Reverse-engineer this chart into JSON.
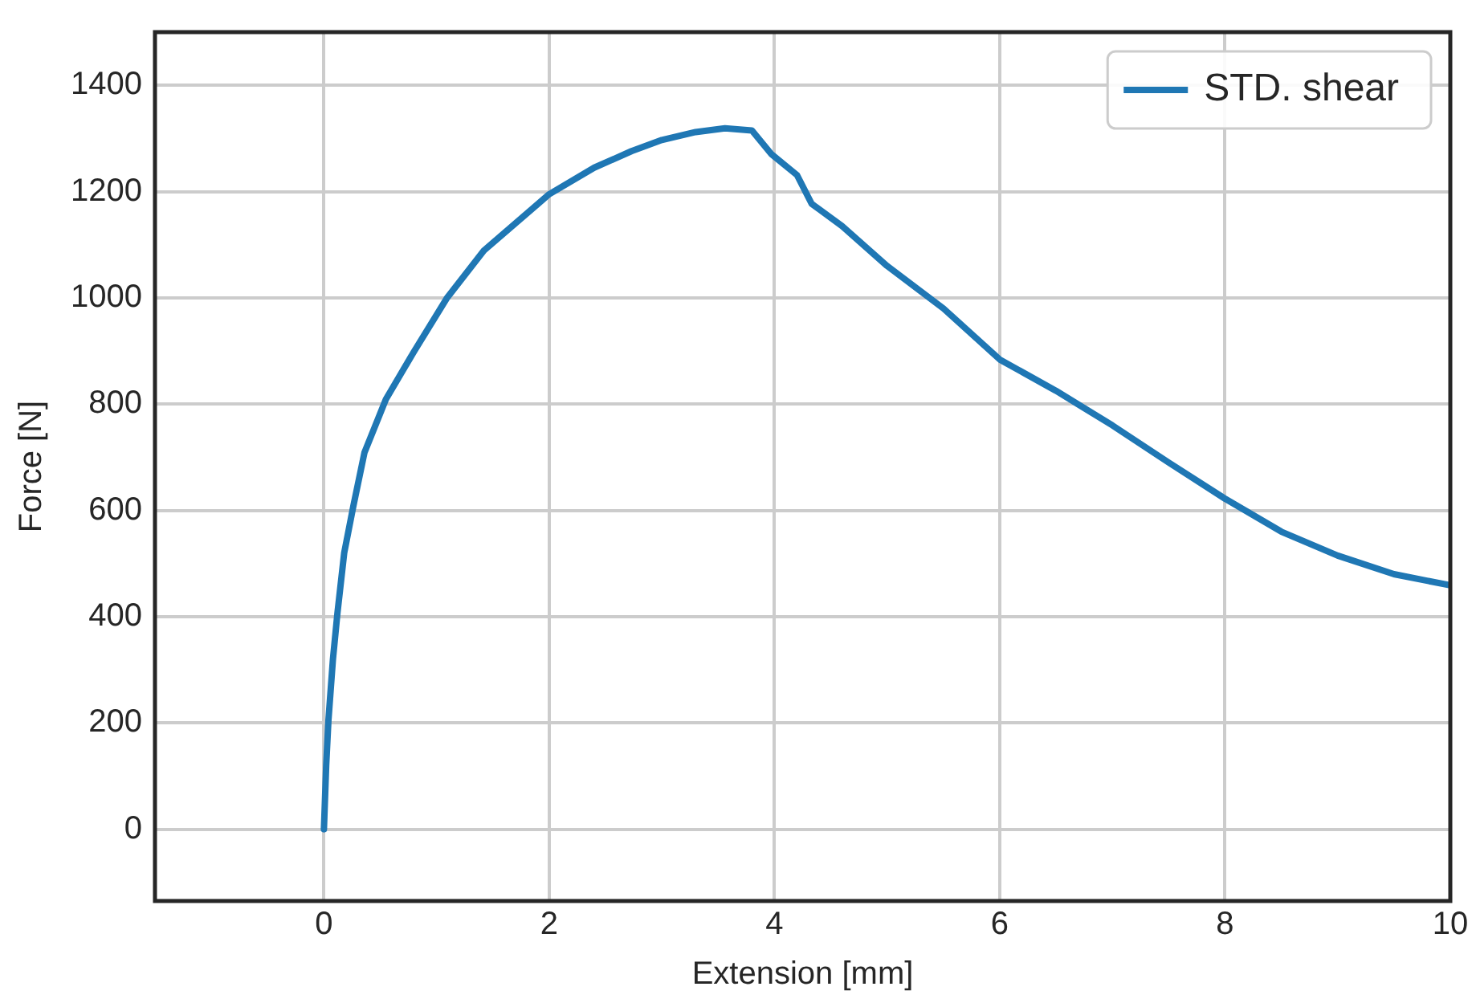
{
  "chart_data": {
    "type": "line",
    "xlabel": "Extension [mm]",
    "ylabel": "Force [N]",
    "xlim": [
      -1.5,
      10
    ],
    "xticks": [
      0,
      2,
      4,
      6,
      8,
      10
    ],
    "ylim": [
      -135,
      1500
    ],
    "yticks": [
      0,
      200,
      400,
      600,
      800,
      1000,
      1200,
      1400
    ],
    "grid": true,
    "legend": "top right",
    "marker": "none",
    "line_style": "solid",
    "series": [
      {
        "name": "STD. shear",
        "color": "#1f77b4",
        "x": [
          0,
          0.02,
          0.04,
          0.08,
          0.12,
          0.18,
          0.26,
          0.36,
          0.55,
          0.8,
          1.09,
          1.42,
          2.0,
          2.4,
          2.73,
          3.0,
          3.3,
          3.56,
          3.8,
          3.97,
          4.2,
          4.33,
          4.6,
          5.0,
          5.5,
          6.0,
          6.5,
          7.0,
          7.5,
          8.0,
          8.5,
          9.0,
          9.5,
          10.0
        ],
        "values": [
          0,
          120,
          205,
          320,
          407,
          520,
          607,
          709,
          809,
          899,
          999,
          1089,
          1195,
          1245,
          1276,
          1297,
          1312,
          1319,
          1315,
          1271,
          1231,
          1177,
          1135,
          1060,
          980,
          884,
          825,
          760,
          690,
          622,
          560,
          515,
          480,
          459
        ]
      }
    ]
  }
}
